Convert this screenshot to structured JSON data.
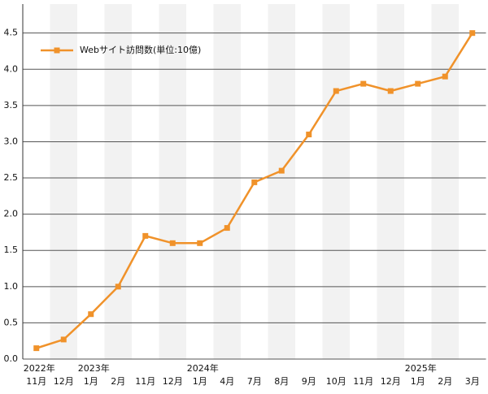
{
  "chart_data": {
    "type": "line",
    "categories": [
      "11月",
      "12月",
      "1月",
      "2月",
      "11月",
      "12月",
      "1月",
      "4月",
      "7月",
      "8月",
      "9月",
      "10月",
      "11月",
      "12月",
      "1月",
      "2月",
      "3月"
    ],
    "years": [
      "2022年",
      null,
      "2023年",
      null,
      null,
      null,
      "2024年",
      null,
      null,
      null,
      null,
      null,
      null,
      null,
      "2025年",
      null,
      null
    ],
    "series": [
      {
        "name": "Webサイト訪問数(単位:10億)",
        "color": "#f0922a",
        "values": [
          0.15,
          0.27,
          0.62,
          1.0,
          1.7,
          1.6,
          1.6,
          1.81,
          2.44,
          2.6,
          3.1,
          3.7,
          3.8,
          3.7,
          3.8,
          3.9,
          4.5
        ]
      }
    ],
    "ylim": [
      0,
      4.9
    ],
    "yticks": [
      {
        "value": 0,
        "label": "0.0"
      },
      0.5,
      {
        "value": 1,
        "label": "1.0"
      },
      1.5,
      {
        "value": 2,
        "label": "2.0"
      },
      2.5,
      {
        "value": 3,
        "label": "3.0"
      },
      3.5,
      {
        "value": 4,
        "label": "4.0"
      },
      4.5
    ],
    "grid": true,
    "legend": "top-left"
  }
}
